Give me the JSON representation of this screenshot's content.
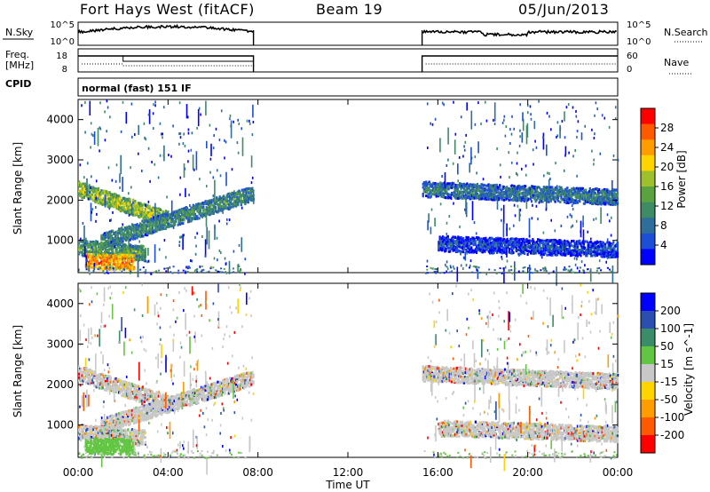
{
  "header": {
    "title": "Fort Hays West (fitACF)",
    "beam": "Beam 19",
    "date": "05/Jun/2013"
  },
  "params": {
    "nsky_label": "N.Sky",
    "nsearch_label": "N.Search",
    "nsky_ticks": [
      "10^5",
      "10^0"
    ],
    "nsearch_ticks": [
      "10^5",
      "10^0"
    ],
    "freq_label": "Freq.",
    "freq_unit": "[MHz]",
    "freq_ticks": [
      "18",
      "8"
    ],
    "nave_label": "Nave",
    "nave_ticks": [
      "60",
      "0"
    ],
    "cpid_label": "CPID",
    "cpid_value": "normal (fast) 151 IF"
  },
  "colors": {
    "power": [
      "#0000ff",
      "#1d4fd6",
      "#2f6e9a",
      "#3e8b66",
      "#5aa23f",
      "#9ec02c",
      "#ffd400",
      "#ff9c00",
      "#ff5a00",
      "#ff0000"
    ],
    "velocity": [
      "#ff0000",
      "#ff5a00",
      "#ff9c00",
      "#ffd400",
      "#c8c8c8",
      "#62c642",
      "#3b8d6a",
      "#2a4fb0",
      "#0000ff"
    ],
    "ground_scatter": "#c8c8c8"
  },
  "chart_data": [
    {
      "type": "heatmap",
      "name": "power-panel",
      "ylabel": "Slant Range [km]",
      "y_ticks": [
        "1000",
        "2000",
        "3000",
        "4000"
      ],
      "ylim": [
        200,
        4500
      ],
      "xlim_hours": [
        0,
        24
      ],
      "colorbar": {
        "label": "Power [dB]",
        "ticks": [
          "4",
          "8",
          "12",
          "16",
          "20",
          "24",
          "28"
        ],
        "range": [
          0,
          32
        ]
      },
      "data_gap_hours": [
        7.8,
        15.3
      ],
      "scatter_bands": [
        {
          "start_h": 0.0,
          "end_h": 4.0,
          "range_km_start": 2300,
          "range_km_end": 1550,
          "power_db": 18
        },
        {
          "start_h": 1.0,
          "end_h": 7.8,
          "range_km_start": 1000,
          "range_km_end": 2200,
          "power_db": 12
        },
        {
          "start_h": 0.0,
          "end_h": 3.0,
          "range_km_start": 850,
          "range_km_end": 700,
          "power_db": 14
        },
        {
          "start_h": 0.3,
          "end_h": 2.5,
          "range_km_start": 520,
          "range_km_end": 480,
          "power_db": 26
        },
        {
          "start_h": 15.3,
          "end_h": 24.0,
          "range_km_start": 2300,
          "range_km_end": 2100,
          "power_db": 10
        },
        {
          "start_h": 16.0,
          "end_h": 24.0,
          "range_km_start": 950,
          "range_km_end": 800,
          "power_db": 6
        }
      ]
    },
    {
      "type": "heatmap",
      "name": "velocity-panel",
      "ylabel": "Slant Range [km]",
      "y_ticks": [
        "1000",
        "2000",
        "3000",
        "4000"
      ],
      "ylim": [
        200,
        4500
      ],
      "xlim_hours": [
        0,
        24
      ],
      "colorbar": {
        "label": "Velocity [m s^-1]",
        "ticks": [
          "200",
          "100",
          "50",
          "15",
          "-15",
          "-50",
          "-100",
          "-200"
        ],
        "range": [
          -250,
          250
        ]
      },
      "data_gap_hours": [
        7.8,
        15.3
      ]
    }
  ],
  "x_axis": {
    "ticks": [
      "00:00",
      "04:00",
      "08:00",
      "12:00",
      "16:00",
      "20:00",
      "00:00"
    ],
    "label": "Time UT"
  }
}
